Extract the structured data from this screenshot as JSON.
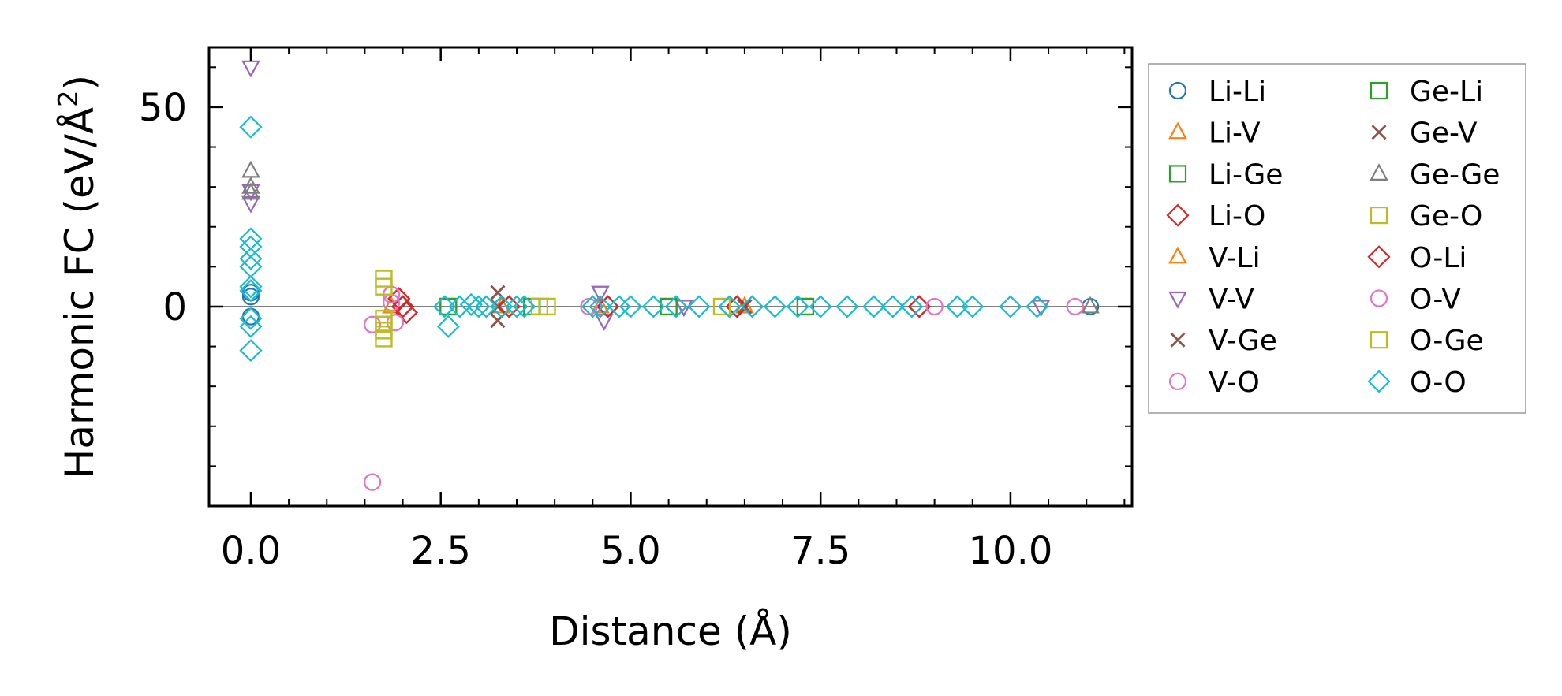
{
  "chart_data": {
    "type": "scatter",
    "title": "",
    "xlabel": "Distance (Å)",
    "ylabel_main": "Harmonic FC (eV/Å",
    "ylabel_sup": "2",
    "ylabel_end": ")",
    "xlim": [
      -0.55,
      11.6
    ],
    "ylim": [
      -50,
      65
    ],
    "x_ticks": [
      0.0,
      2.5,
      5.0,
      7.5,
      10.0
    ],
    "x_tick_labels": [
      "0.0",
      "2.5",
      "5.0",
      "7.5",
      "10.0"
    ],
    "x_minor_ticks": [
      0.5,
      1.0,
      1.5,
      2.0,
      3.0,
      3.5,
      4.0,
      4.5,
      5.5,
      6.0,
      6.5,
      7.0,
      8.0,
      8.5,
      9.0,
      9.5,
      10.5,
      11.0,
      11.5
    ],
    "y_ticks": [
      0,
      50
    ],
    "y_tick_labels": [
      "0",
      "50"
    ],
    "y_minor_ticks": [
      -40,
      -30,
      -20,
      -10,
      10,
      20,
      30,
      40,
      60
    ],
    "zero_line": 0,
    "legend_position": "outside-right",
    "series": [
      {
        "name": "Li-Li",
        "marker": "circle",
        "color": "#1f77b4",
        "x": [
          0.0,
          0.0,
          0.0,
          11.05
        ],
        "y": [
          3.5,
          2.5,
          -2.5,
          0
        ]
      },
      {
        "name": "Li-V",
        "marker": "triangle-up",
        "color": "#ff7f0e",
        "x": [
          1.85,
          3.3,
          4.6,
          6.5
        ],
        "y": [
          0,
          0,
          0,
          0
        ]
      },
      {
        "name": "Li-Ge",
        "marker": "square",
        "color": "#2ca02c",
        "x": [
          2.6,
          3.7,
          5.5,
          7.3
        ],
        "y": [
          0,
          0,
          0,
          0
        ]
      },
      {
        "name": "Li-O",
        "marker": "diamond",
        "color": "#d62728",
        "x": [
          1.95,
          2.0,
          2.05,
          3.4,
          4.7,
          6.4,
          8.8
        ],
        "y": [
          2,
          0,
          -1.5,
          0,
          0,
          0,
          0
        ]
      },
      {
        "name": "V-Li",
        "marker": "triangle-up",
        "color": "#ff7f0e",
        "x": [
          1.85,
          3.3,
          4.6,
          6.5
        ],
        "y": [
          0,
          0,
          0,
          0
        ]
      },
      {
        "name": "V-V",
        "marker": "triangle-down",
        "color": "#9467bd",
        "x": [
          0.0,
          0.0,
          0.0,
          4.6,
          4.65,
          5.7,
          10.4
        ],
        "y": [
          60,
          29,
          26,
          3.5,
          -3.5,
          0,
          0
        ]
      },
      {
        "name": "V-Ge",
        "marker": "x",
        "color": "#8c564b",
        "x": [
          3.25,
          3.25,
          3.25,
          6.5
        ],
        "y": [
          3.5,
          0,
          -3.5,
          0
        ]
      },
      {
        "name": "V-O",
        "marker": "circle",
        "color": "#e377c2",
        "x": [
          1.6,
          1.6,
          1.85,
          1.85,
          1.9,
          4.45,
          9.0,
          10.85
        ],
        "y": [
          -44,
          -4.5,
          3,
          1,
          -4,
          0,
          0,
          0
        ]
      },
      {
        "name": "Ge-Li",
        "marker": "square",
        "color": "#2ca02c",
        "x": [
          2.6,
          3.7,
          5.5,
          7.3
        ],
        "y": [
          0,
          0,
          0,
          0
        ]
      },
      {
        "name": "Ge-V",
        "marker": "x",
        "color": "#8c564b",
        "x": [
          3.25,
          3.25,
          3.25,
          6.5
        ],
        "y": [
          3.5,
          0,
          -3.5,
          0
        ]
      },
      {
        "name": "Ge-Ge",
        "marker": "triangle-up",
        "color": "#7f7f7f",
        "x": [
          0.0,
          0.0,
          0.0,
          11.05
        ],
        "y": [
          34,
          30,
          28.5,
          0
        ]
      },
      {
        "name": "Ge-O",
        "marker": "square",
        "color": "#bcbd22",
        "x": [
          1.75,
          1.75,
          1.75,
          1.75,
          1.75,
          1.75,
          3.8,
          3.9,
          6.2
        ],
        "y": [
          7,
          5,
          -3,
          -4.5,
          -6,
          -8,
          0,
          0,
          0
        ]
      },
      {
        "name": "O-Li",
        "marker": "diamond",
        "color": "#d62728",
        "x": [
          1.95,
          2.0,
          2.05,
          3.4,
          4.7,
          6.4,
          8.8
        ],
        "y": [
          2,
          0,
          -1.5,
          0,
          0,
          0,
          0
        ]
      },
      {
        "name": "O-V",
        "marker": "circle",
        "color": "#e377c2",
        "x": [
          1.6,
          1.6,
          1.85,
          1.85,
          1.9,
          4.45,
          9.0,
          10.85
        ],
        "y": [
          -44,
          -4.5,
          3,
          1,
          -4,
          0,
          0,
          0
        ]
      },
      {
        "name": "O-Ge",
        "marker": "square",
        "color": "#bcbd22",
        "x": [
          1.75,
          1.75,
          1.75,
          1.75,
          1.75,
          1.75,
          3.8,
          3.9,
          6.2
        ],
        "y": [
          7,
          5,
          -3,
          -4.5,
          -6,
          -8,
          0,
          0,
          0
        ]
      },
      {
        "name": "O-O",
        "marker": "diamond",
        "color": "#17becf",
        "x": [
          0.0,
          0.0,
          0.0,
          0.0,
          0.0,
          0.0,
          0.0,
          0.0,
          0.0,
          0.0,
          2.55,
          2.6,
          2.75,
          2.9,
          3.0,
          3.1,
          3.3,
          3.5,
          3.6,
          4.5,
          4.6,
          4.85,
          5.0,
          5.3,
          5.6,
          5.9,
          6.3,
          6.6,
          6.9,
          7.2,
          7.5,
          7.85,
          8.2,
          8.45,
          8.7,
          9.3,
          9.5,
          10.0,
          10.35
        ],
        "y": [
          45,
          17,
          15,
          12,
          10,
          5,
          4,
          -3,
          -5,
          -11,
          0,
          -5,
          0,
          0.5,
          0,
          0,
          0,
          0,
          0,
          0,
          0,
          0,
          0,
          0,
          0,
          0,
          0,
          0,
          0,
          0,
          0,
          0,
          0,
          0,
          0,
          0,
          0,
          0,
          0
        ]
      }
    ]
  }
}
